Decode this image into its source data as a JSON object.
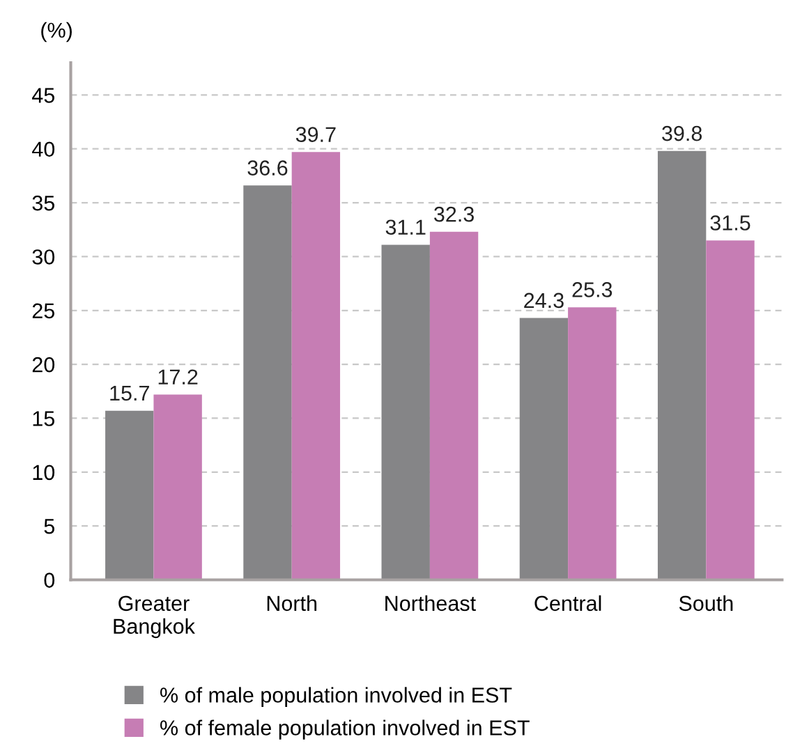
{
  "chart_data": {
    "type": "bar",
    "ylabel": "(%)",
    "categories": [
      "Greater\nBangkok",
      "North",
      "Northeast",
      "Central",
      "South"
    ],
    "series": [
      {
        "name": "% of male population involved in EST",
        "color": "#858587",
        "values": [
          15.7,
          36.6,
          31.1,
          24.3,
          39.8
        ]
      },
      {
        "name": "% of female population involved in EST",
        "color": "#c67db4",
        "values": [
          17.2,
          39.7,
          32.3,
          25.3,
          31.5
        ]
      }
    ],
    "ylim": [
      0,
      48
    ],
    "yticks": [
      0,
      5,
      10,
      15,
      20,
      25,
      30,
      35,
      40,
      45
    ],
    "grid": "y",
    "legend": "bottom",
    "data_labels": true
  }
}
